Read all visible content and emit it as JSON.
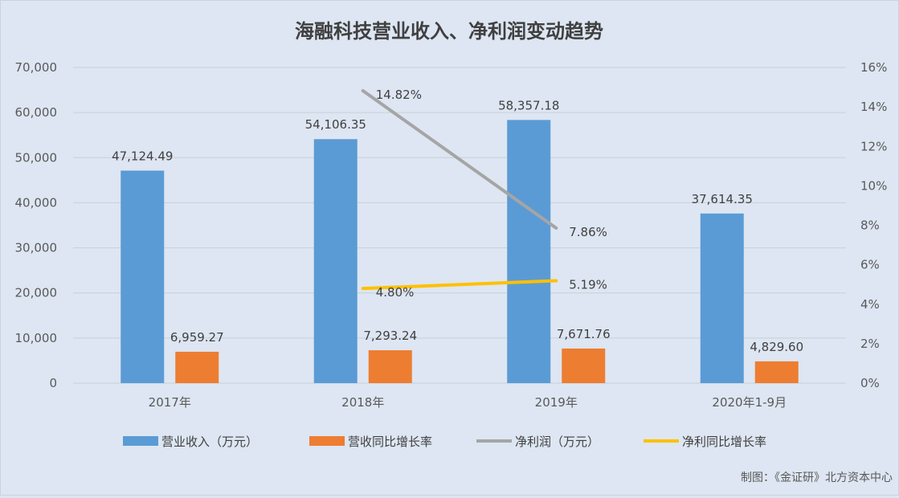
{
  "chart_data": {
    "type": "bar",
    "title": "海融科技营业收入、净利润变动趋势",
    "categories": [
      "2017年",
      "2018年",
      "2019年",
      "2020年1-9月"
    ],
    "y_left": {
      "ylim": [
        0,
        70000
      ],
      "ticks": [
        "0",
        "10,000",
        "20,000",
        "30,000",
        "40,000",
        "50,000",
        "60,000",
        "70,000"
      ],
      "tick_values": [
        0,
        10000,
        20000,
        30000,
        40000,
        50000,
        60000,
        70000
      ]
    },
    "y_right": {
      "ylim": [
        0,
        16
      ],
      "ticks": [
        "0%",
        "2%",
        "4%",
        "6%",
        "8%",
        "10%",
        "12%",
        "14%",
        "16%"
      ],
      "tick_values": [
        0,
        2,
        4,
        6,
        8,
        10,
        12,
        14,
        16
      ]
    },
    "series": [
      {
        "name": "营业收入（万元）",
        "kind": "bar",
        "axis": "left",
        "color": "#5b9bd5",
        "values": [
          47124.49,
          54106.35,
          58357.18,
          37614.35
        ],
        "labels": [
          "47,124.49",
          "54,106.35",
          "58,357.18",
          "37,614.35"
        ]
      },
      {
        "name": "营收同比增长率",
        "kind": "bar",
        "axis": "left",
        "color": "#ed7d31",
        "values": [
          6959.27,
          7293.24,
          7671.76,
          4829.6
        ],
        "labels": [
          "6,959.27",
          "7,293.24",
          "7,671.76",
          "4,829.60"
        ]
      },
      {
        "name": "净利润（万元）",
        "kind": "line",
        "axis": "right",
        "color": "#a5a5a5",
        "values": [
          null,
          14.82,
          7.86,
          null
        ],
        "labels": [
          null,
          "14.82%",
          "7.86%",
          null
        ]
      },
      {
        "name": "净利同比增长率",
        "kind": "line",
        "axis": "right",
        "color": "#ffc000",
        "values": [
          null,
          4.8,
          5.19,
          null
        ],
        "labels": [
          null,
          "4.80%",
          "5.19%",
          null
        ]
      }
    ],
    "grid": true,
    "legend_position": "bottom"
  },
  "source_note": "制图：《金证研》北方资本中心"
}
